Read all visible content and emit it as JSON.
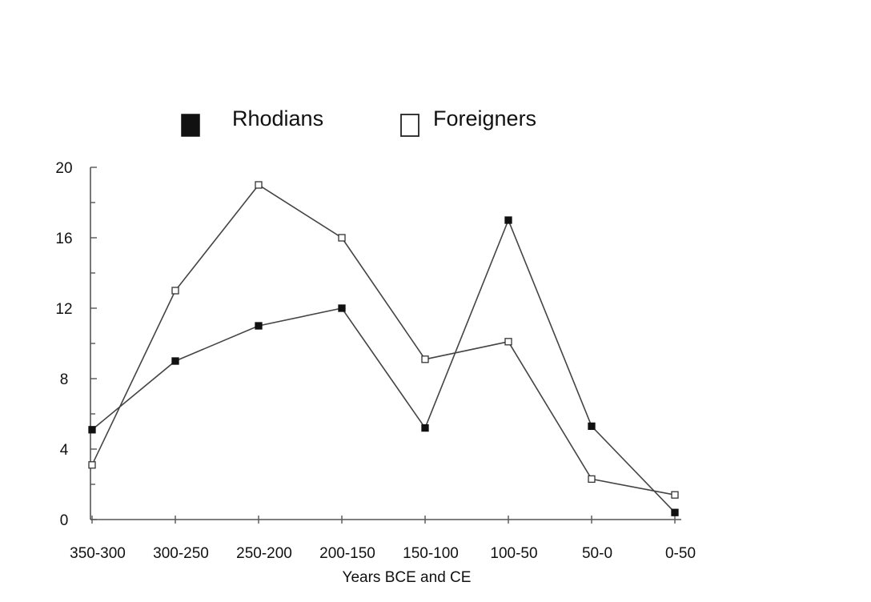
{
  "chart_data": {
    "type": "line",
    "categories": [
      "350-300",
      "300-250",
      "250-200",
      "200-150",
      "150-100",
      "100-50",
      "50-0",
      "0-50"
    ],
    "series": [
      {
        "name": "Rhodians",
        "marker": "filled-square",
        "values": [
          5.1,
          9.0,
          11.0,
          12.0,
          5.2,
          17.0,
          5.3,
          0.4
        ]
      },
      {
        "name": "Foreigners",
        "marker": "open-square",
        "values": [
          3.1,
          13.0,
          19.0,
          16.0,
          9.1,
          10.1,
          2.3,
          1.4
        ]
      }
    ],
    "title": "",
    "xlabel": "Years BCE and CE",
    "ylabel": "",
    "ylim": [
      0,
      20
    ],
    "yticks": [
      "0",
      "4",
      "8",
      "12",
      "16",
      "20"
    ],
    "grid": false,
    "legend": "top",
    "colors": {
      "line": "#444444",
      "marker_fill_dark": "#111111",
      "marker_fill_light": "#ffffff",
      "axis": "#555555"
    }
  }
}
